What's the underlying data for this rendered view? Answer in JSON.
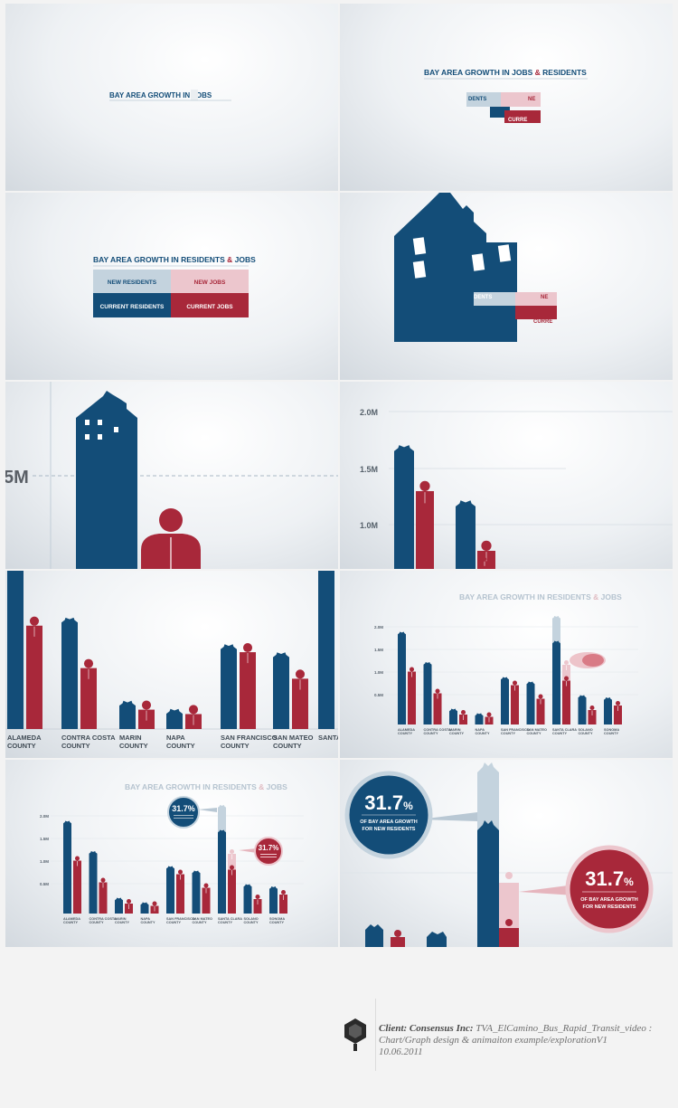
{
  "frames": {
    "f1": {
      "title_partial": "BAY AREA GROWTH IN JOBS"
    },
    "f2": {
      "title": "BAY AREA GROWTH IN JOBS & RESIDENTS",
      "title_main": "BAY AREA GROWTH IN JOBS",
      "title_amp": "&",
      "title_end": "RESIDENTS",
      "frag_a": "DENTS",
      "frag_b": "NE",
      "frag_c": "CURRE"
    },
    "f3": {
      "title_main": "BAY AREA GROWTH IN RESIDENTS",
      "title_amp": "&",
      "title_end": "JOBS",
      "legend": {
        "new_residents": "NEW RESIDENTS",
        "new_jobs": "NEW JOBS",
        "current_residents": "CURRENT RESIDENTS",
        "current_jobs": "CURRENT JOBS"
      }
    },
    "f4": {
      "frag_a": "DENTS",
      "frag_b": "NE",
      "frag_c": "CURRE"
    },
    "f5": {
      "axis_partial": "5M"
    },
    "f6": {
      "ticks": [
        "2.0M",
        "1.5M",
        "1.0M"
      ]
    },
    "f7": {
      "counties": [
        "ALAMEDA COUNTY",
        "CONTRA COSTA COUNTY",
        "MARIN COUNTY",
        "NAPA COUNTY",
        "SAN FRANCISCO COUNTY",
        "SAN MATEO COUNTY",
        "SANTA"
      ]
    },
    "f8": {
      "title_main": "BAY AREA GROWTH IN RESIDENTS",
      "title_amp": "&",
      "title_end": "JOBS"
    },
    "f9": {
      "title_main": "BAY AREA GROWTH IN RESIDENTS",
      "title_amp": "&",
      "title_end": "JOBS",
      "callout_blue": "31.7%",
      "callout_red": "31.7%"
    },
    "f10": {
      "callout_value": "31.7",
      "callout_unit": "%",
      "callout_line1": "OF BAY AREA GROWTH",
      "callout_line2": "FOR NEW RESIDENTS"
    }
  },
  "chart_data": {
    "type": "bar",
    "title": "BAY AREA GROWTH IN RESIDENTS & JOBS",
    "categories": [
      "ALAMEDA COUNTY",
      "CONTRA COSTA COUNTY",
      "MARIN COUNTY",
      "NAPA COUNTY",
      "SAN FRANCISCO COUNTY",
      "SAN MATEO COUNTY",
      "SANTA CLARA COUNTY",
      "SOLANO COUNTY",
      "SONOMA COUNTY"
    ],
    "ticks": [
      "2.0M",
      "1.5M",
      "1.0M",
      "0.5M"
    ],
    "ylim": [
      0,
      2.5
    ],
    "series": [
      {
        "name": "CURRENT RESIDENTS",
        "values": [
          2.05,
          1.38,
          0.35,
          0.25,
          1.05,
          0.95,
          1.85,
          0.65,
          0.6
        ]
      },
      {
        "name": "CURRENT JOBS",
        "values": [
          1.2,
          0.72,
          0.25,
          0.2,
          0.9,
          0.6,
          1.0,
          0.35,
          0.45
        ]
      },
      {
        "name": "NEW RESIDENTS",
        "values": [
          0,
          0,
          0,
          0,
          0,
          0,
          0.55,
          0,
          0
        ]
      },
      {
        "name": "NEW JOBS",
        "values": [
          0,
          0,
          0,
          0,
          0,
          0,
          0.35,
          0,
          0
        ]
      }
    ],
    "annotations": [
      "31.7% OF BAY AREA GROWTH FOR NEW RESIDENTS"
    ],
    "colors": {
      "residents": "#134d78",
      "jobs": "#a8283a",
      "new_residents": "#c4d3de",
      "new_jobs": "#ecc6cd"
    }
  },
  "credit": {
    "client_label": "Client: Consensus Inc:",
    "project": "TVA_ElCamino_Bus_Rapid_Transit_video :",
    "description": "Chart/Graph design & animaiton example/explorationV1",
    "date": "10.06.2011"
  }
}
